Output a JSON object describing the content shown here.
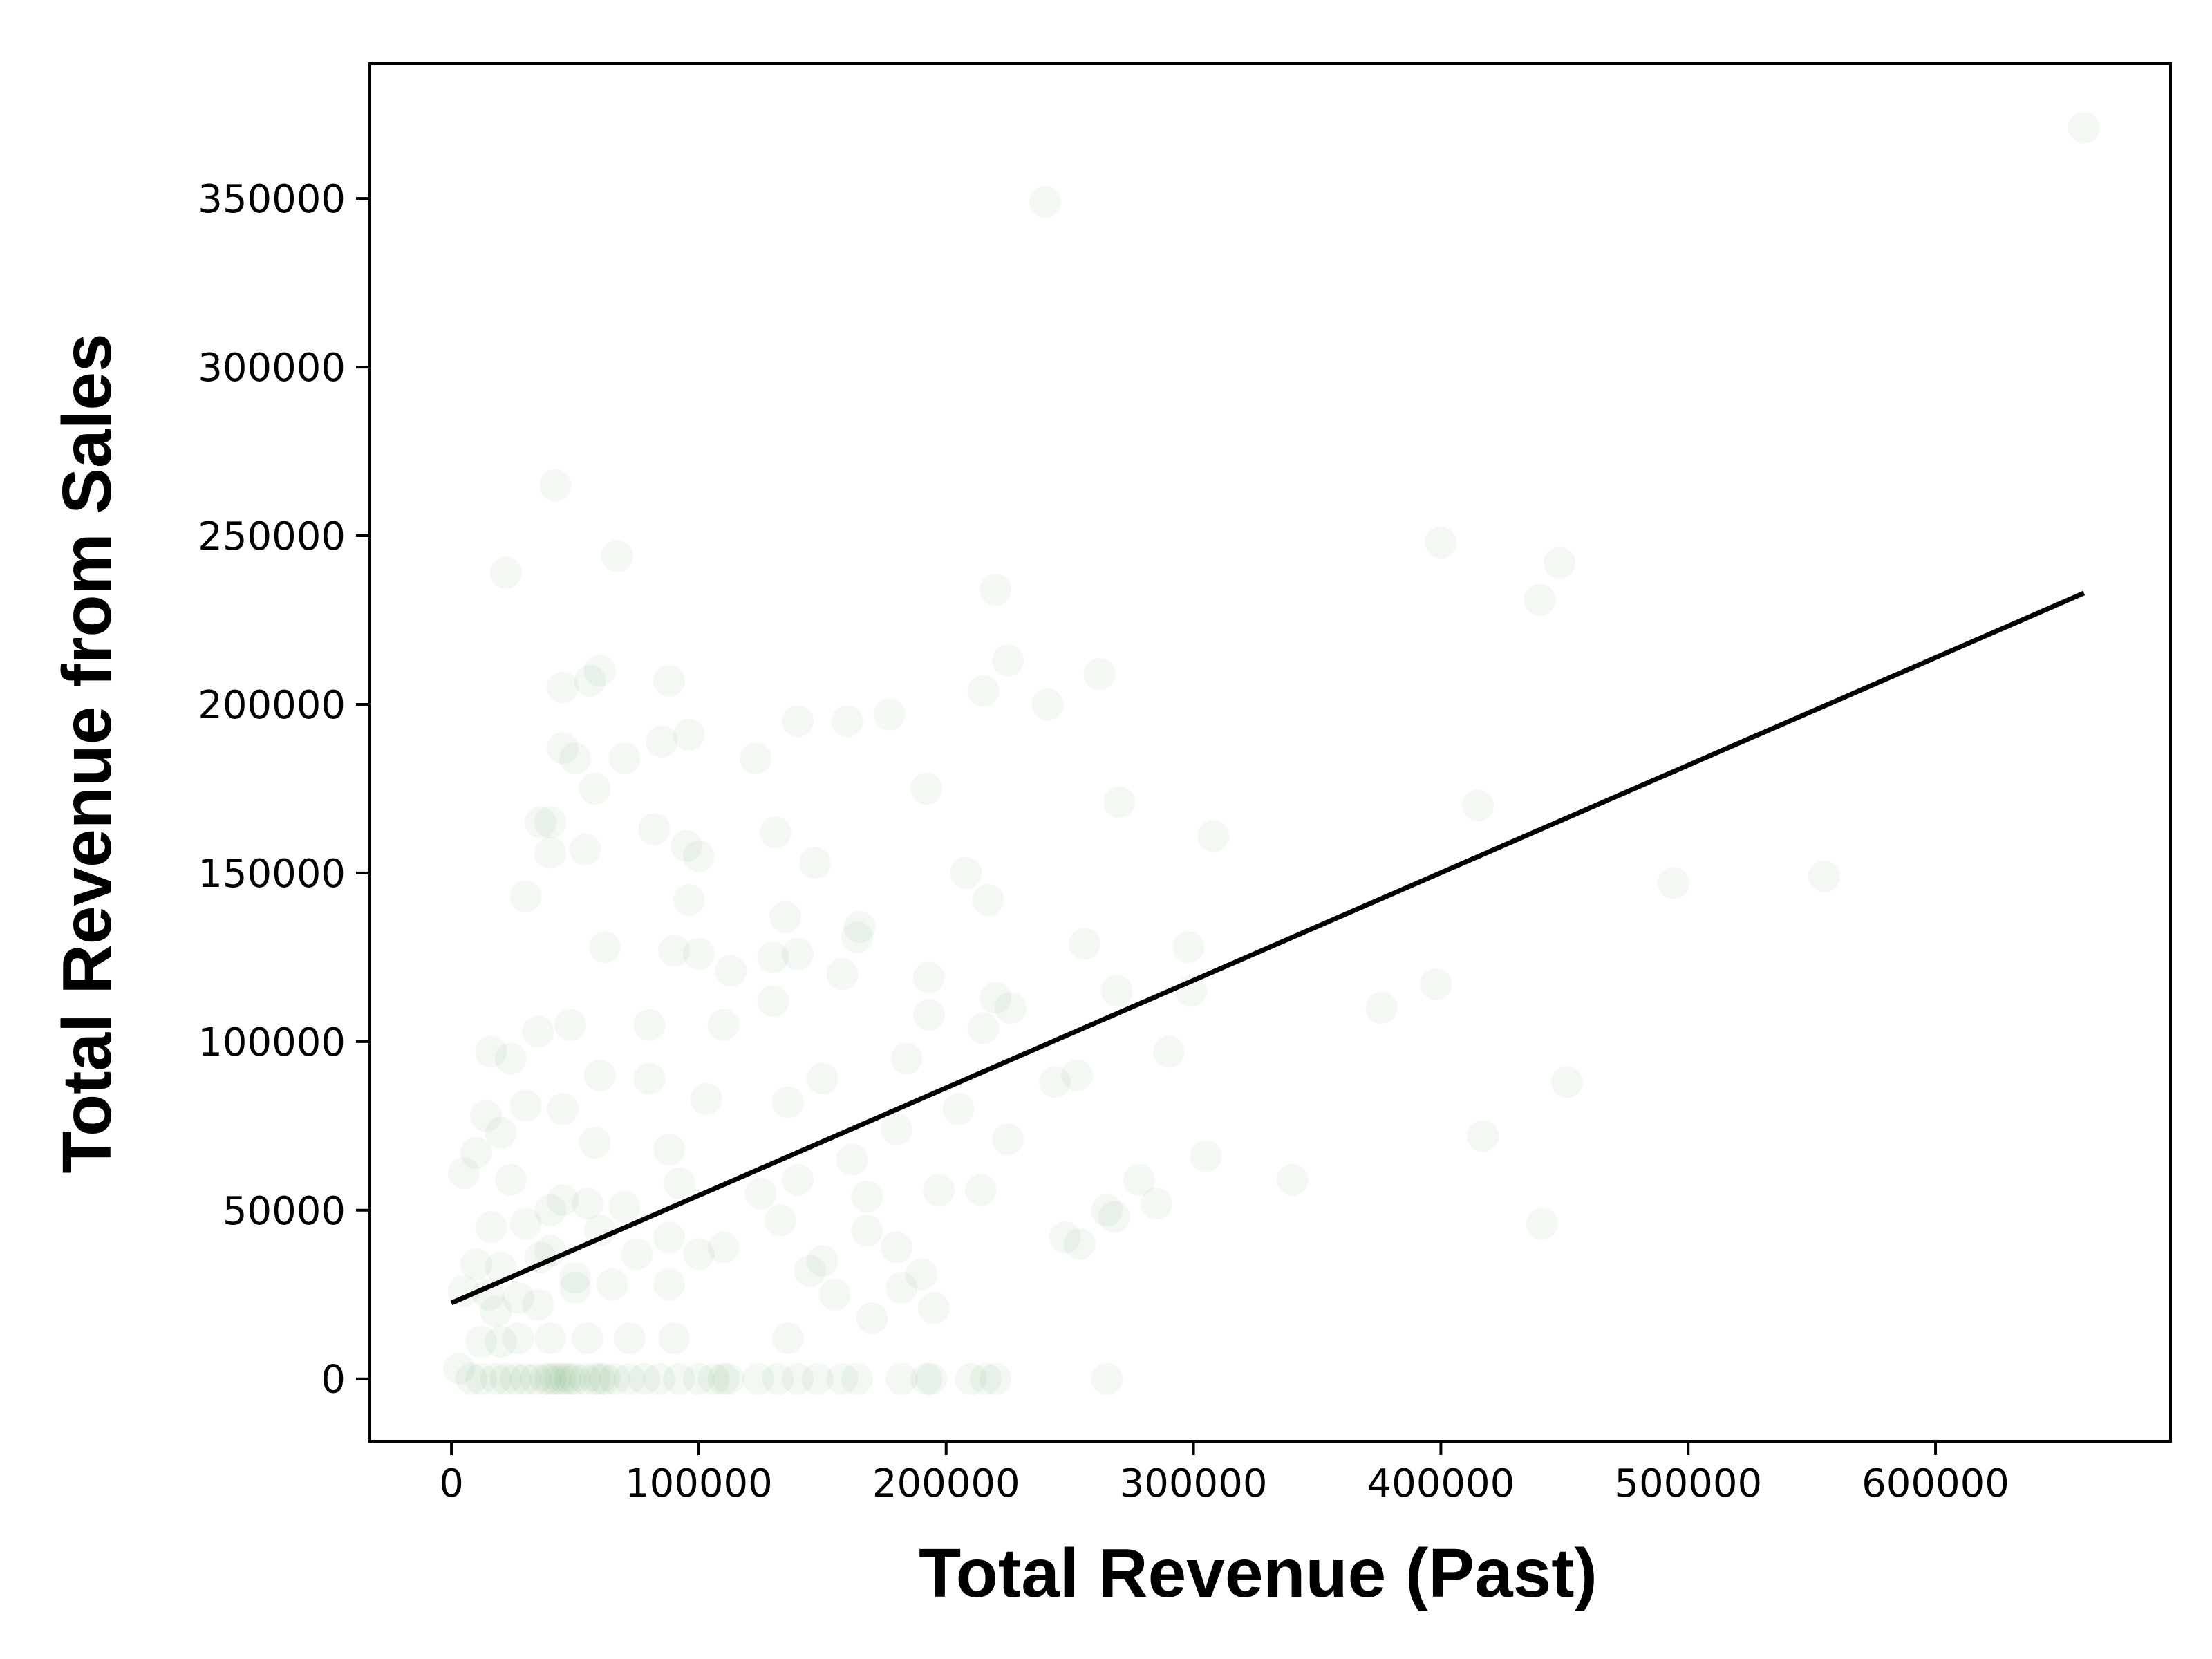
{
  "chart_data": {
    "type": "scatter",
    "title": "",
    "xlabel": "Total Revenue (Past)",
    "ylabel": "Total Revenue from Sales",
    "xlim": [
      -33000,
      695000
    ],
    "ylim": [
      -18500,
      390000
    ],
    "xticks": [
      0,
      100000,
      200000,
      300000,
      400000,
      500000,
      600000
    ],
    "yticks": [
      0,
      50000,
      100000,
      150000,
      200000,
      250000,
      300000,
      350000
    ],
    "grid": false,
    "legend": "none",
    "point_color": "#1a7f1a",
    "point_alpha": 0.05,
    "line_color": "#000000",
    "series": [
      {
        "kind": "scatter",
        "points": [
          [
            660000,
            371000
          ],
          [
            240000,
            349000
          ],
          [
            42000,
            265000
          ],
          [
            67000,
            244000
          ],
          [
            22000,
            239000
          ],
          [
            400000,
            248000
          ],
          [
            448000,
            242000
          ],
          [
            440000,
            231000
          ],
          [
            220000,
            234000
          ],
          [
            225000,
            213000
          ],
          [
            262000,
            209000
          ],
          [
            60000,
            210000
          ],
          [
            45000,
            205000
          ],
          [
            56000,
            207000
          ],
          [
            88000,
            207000
          ],
          [
            96000,
            191000
          ],
          [
            85000,
            189000
          ],
          [
            177000,
            197000
          ],
          [
            160000,
            195000
          ],
          [
            140000,
            195000
          ],
          [
            241000,
            200000
          ],
          [
            215000,
            204000
          ],
          [
            70000,
            184000
          ],
          [
            123000,
            184000
          ],
          [
            50000,
            184000
          ],
          [
            45000,
            187000
          ],
          [
            192000,
            175000
          ],
          [
            270000,
            171000
          ],
          [
            308000,
            161000
          ],
          [
            415000,
            170000
          ],
          [
            36000,
            165000
          ],
          [
            40000,
            165000
          ],
          [
            58000,
            175000
          ],
          [
            82000,
            163000
          ],
          [
            131000,
            162000
          ],
          [
            95000,
            158000
          ],
          [
            54000,
            157000
          ],
          [
            40000,
            156000
          ],
          [
            100000,
            155000
          ],
          [
            147000,
            153000
          ],
          [
            208000,
            150000
          ],
          [
            217000,
            142000
          ],
          [
            494000,
            147000
          ],
          [
            555000,
            149000
          ],
          [
            30000,
            143000
          ],
          [
            96000,
            142000
          ],
          [
            135000,
            137000
          ],
          [
            165000,
            134000
          ],
          [
            164000,
            131000
          ],
          [
            62000,
            128000
          ],
          [
            90000,
            127000
          ],
          [
            100000,
            126000
          ],
          [
            256000,
            129000
          ],
          [
            298000,
            128000
          ],
          [
            140000,
            126000
          ],
          [
            130000,
            125000
          ],
          [
            113000,
            121000
          ],
          [
            158000,
            120000
          ],
          [
            193000,
            119000
          ],
          [
            269000,
            115000
          ],
          [
            299000,
            115000
          ],
          [
            220000,
            113000
          ],
          [
            398000,
            117000
          ],
          [
            376000,
            110000
          ],
          [
            130000,
            112000
          ],
          [
            193000,
            108000
          ],
          [
            226000,
            110000
          ],
          [
            110000,
            105000
          ],
          [
            48000,
            105000
          ],
          [
            35000,
            103000
          ],
          [
            80000,
            105000
          ],
          [
            215000,
            104000
          ],
          [
            290000,
            97000
          ],
          [
            16000,
            97000
          ],
          [
            24000,
            95000
          ],
          [
            184000,
            95000
          ],
          [
            150000,
            89000
          ],
          [
            244000,
            88000
          ],
          [
            253000,
            90000
          ],
          [
            451000,
            88000
          ],
          [
            60000,
            90000
          ],
          [
            80000,
            89000
          ],
          [
            103000,
            83000
          ],
          [
            136000,
            82000
          ],
          [
            205000,
            80000
          ],
          [
            45000,
            80000
          ],
          [
            30000,
            81000
          ],
          [
            14000,
            78000
          ],
          [
            20000,
            73000
          ],
          [
            180000,
            74000
          ],
          [
            225000,
            71000
          ],
          [
            417000,
            72000
          ],
          [
            58000,
            70000
          ],
          [
            10000,
            67000
          ],
          [
            88000,
            68000
          ],
          [
            162000,
            65000
          ],
          [
            5000,
            61000
          ],
          [
            278000,
            59000
          ],
          [
            305000,
            66000
          ],
          [
            340000,
            59000
          ],
          [
            24000,
            59000
          ],
          [
            92000,
            58000
          ],
          [
            140000,
            59000
          ],
          [
            197000,
            56000
          ],
          [
            214000,
            56000
          ],
          [
            125000,
            55000
          ],
          [
            168000,
            54000
          ],
          [
            45000,
            53000
          ],
          [
            40000,
            50000
          ],
          [
            55000,
            52000
          ],
          [
            70000,
            51000
          ],
          [
            265000,
            50000
          ],
          [
            285000,
            52000
          ],
          [
            133000,
            47000
          ],
          [
            168000,
            44000
          ],
          [
            268000,
            48000
          ],
          [
            441000,
            46000
          ],
          [
            16000,
            45000
          ],
          [
            30000,
            46000
          ],
          [
            60000,
            44000
          ],
          [
            88000,
            42000
          ],
          [
            248000,
            42000
          ],
          [
            254000,
            40000
          ],
          [
            110000,
            39000
          ],
          [
            40000,
            38000
          ],
          [
            36000,
            36000
          ],
          [
            75000,
            37000
          ],
          [
            100000,
            37000
          ],
          [
            150000,
            35000
          ],
          [
            180000,
            39000
          ],
          [
            10000,
            34000
          ],
          [
            20000,
            33000
          ],
          [
            145000,
            32000
          ],
          [
            190000,
            31000
          ],
          [
            50000,
            30000
          ],
          [
            5000,
            26000
          ],
          [
            15000,
            25000
          ],
          [
            27000,
            24000
          ],
          [
            50000,
            27000
          ],
          [
            65000,
            28000
          ],
          [
            88000,
            28000
          ],
          [
            155000,
            25000
          ],
          [
            182000,
            27000
          ],
          [
            195000,
            21000
          ],
          [
            170000,
            18000
          ],
          [
            18000,
            20000
          ],
          [
            35000,
            22000
          ],
          [
            12000,
            11000
          ],
          [
            20000,
            11000
          ],
          [
            27000,
            12000
          ],
          [
            40000,
            12000
          ],
          [
            55000,
            12000
          ],
          [
            72000,
            12000
          ],
          [
            90000,
            12000
          ],
          [
            136000,
            12000
          ],
          [
            3000,
            3000
          ],
          [
            8000,
            0
          ],
          [
            12000,
            0
          ],
          [
            18000,
            0
          ],
          [
            22000,
            0
          ],
          [
            26000,
            0
          ],
          [
            30000,
            0
          ],
          [
            34000,
            0
          ],
          [
            38000,
            0
          ],
          [
            40000,
            0
          ],
          [
            42000,
            0
          ],
          [
            44000,
            0
          ],
          [
            46000,
            0
          ],
          [
            48000,
            0
          ],
          [
            50000,
            0
          ],
          [
            54000,
            0
          ],
          [
            58000,
            0
          ],
          [
            60000,
            0
          ],
          [
            62000,
            0
          ],
          [
            66000,
            0
          ],
          [
            72000,
            0
          ],
          [
            78000,
            0
          ],
          [
            84000,
            0
          ],
          [
            92000,
            0
          ],
          [
            100000,
            0
          ],
          [
            106000,
            0
          ],
          [
            110000,
            0
          ],
          [
            112000,
            0
          ],
          [
            124000,
            0
          ],
          [
            132000,
            0
          ],
          [
            140000,
            0
          ],
          [
            148000,
            0
          ],
          [
            158000,
            0
          ],
          [
            164000,
            0
          ],
          [
            182000,
            0
          ],
          [
            192000,
            0
          ],
          [
            194000,
            0
          ],
          [
            210000,
            0
          ],
          [
            216000,
            0
          ],
          [
            220000,
            0
          ],
          [
            265000,
            0
          ]
        ]
      },
      {
        "kind": "line",
        "points": [
          [
            0,
            22500
          ],
          [
            660000,
            233000
          ]
        ]
      }
    ]
  }
}
